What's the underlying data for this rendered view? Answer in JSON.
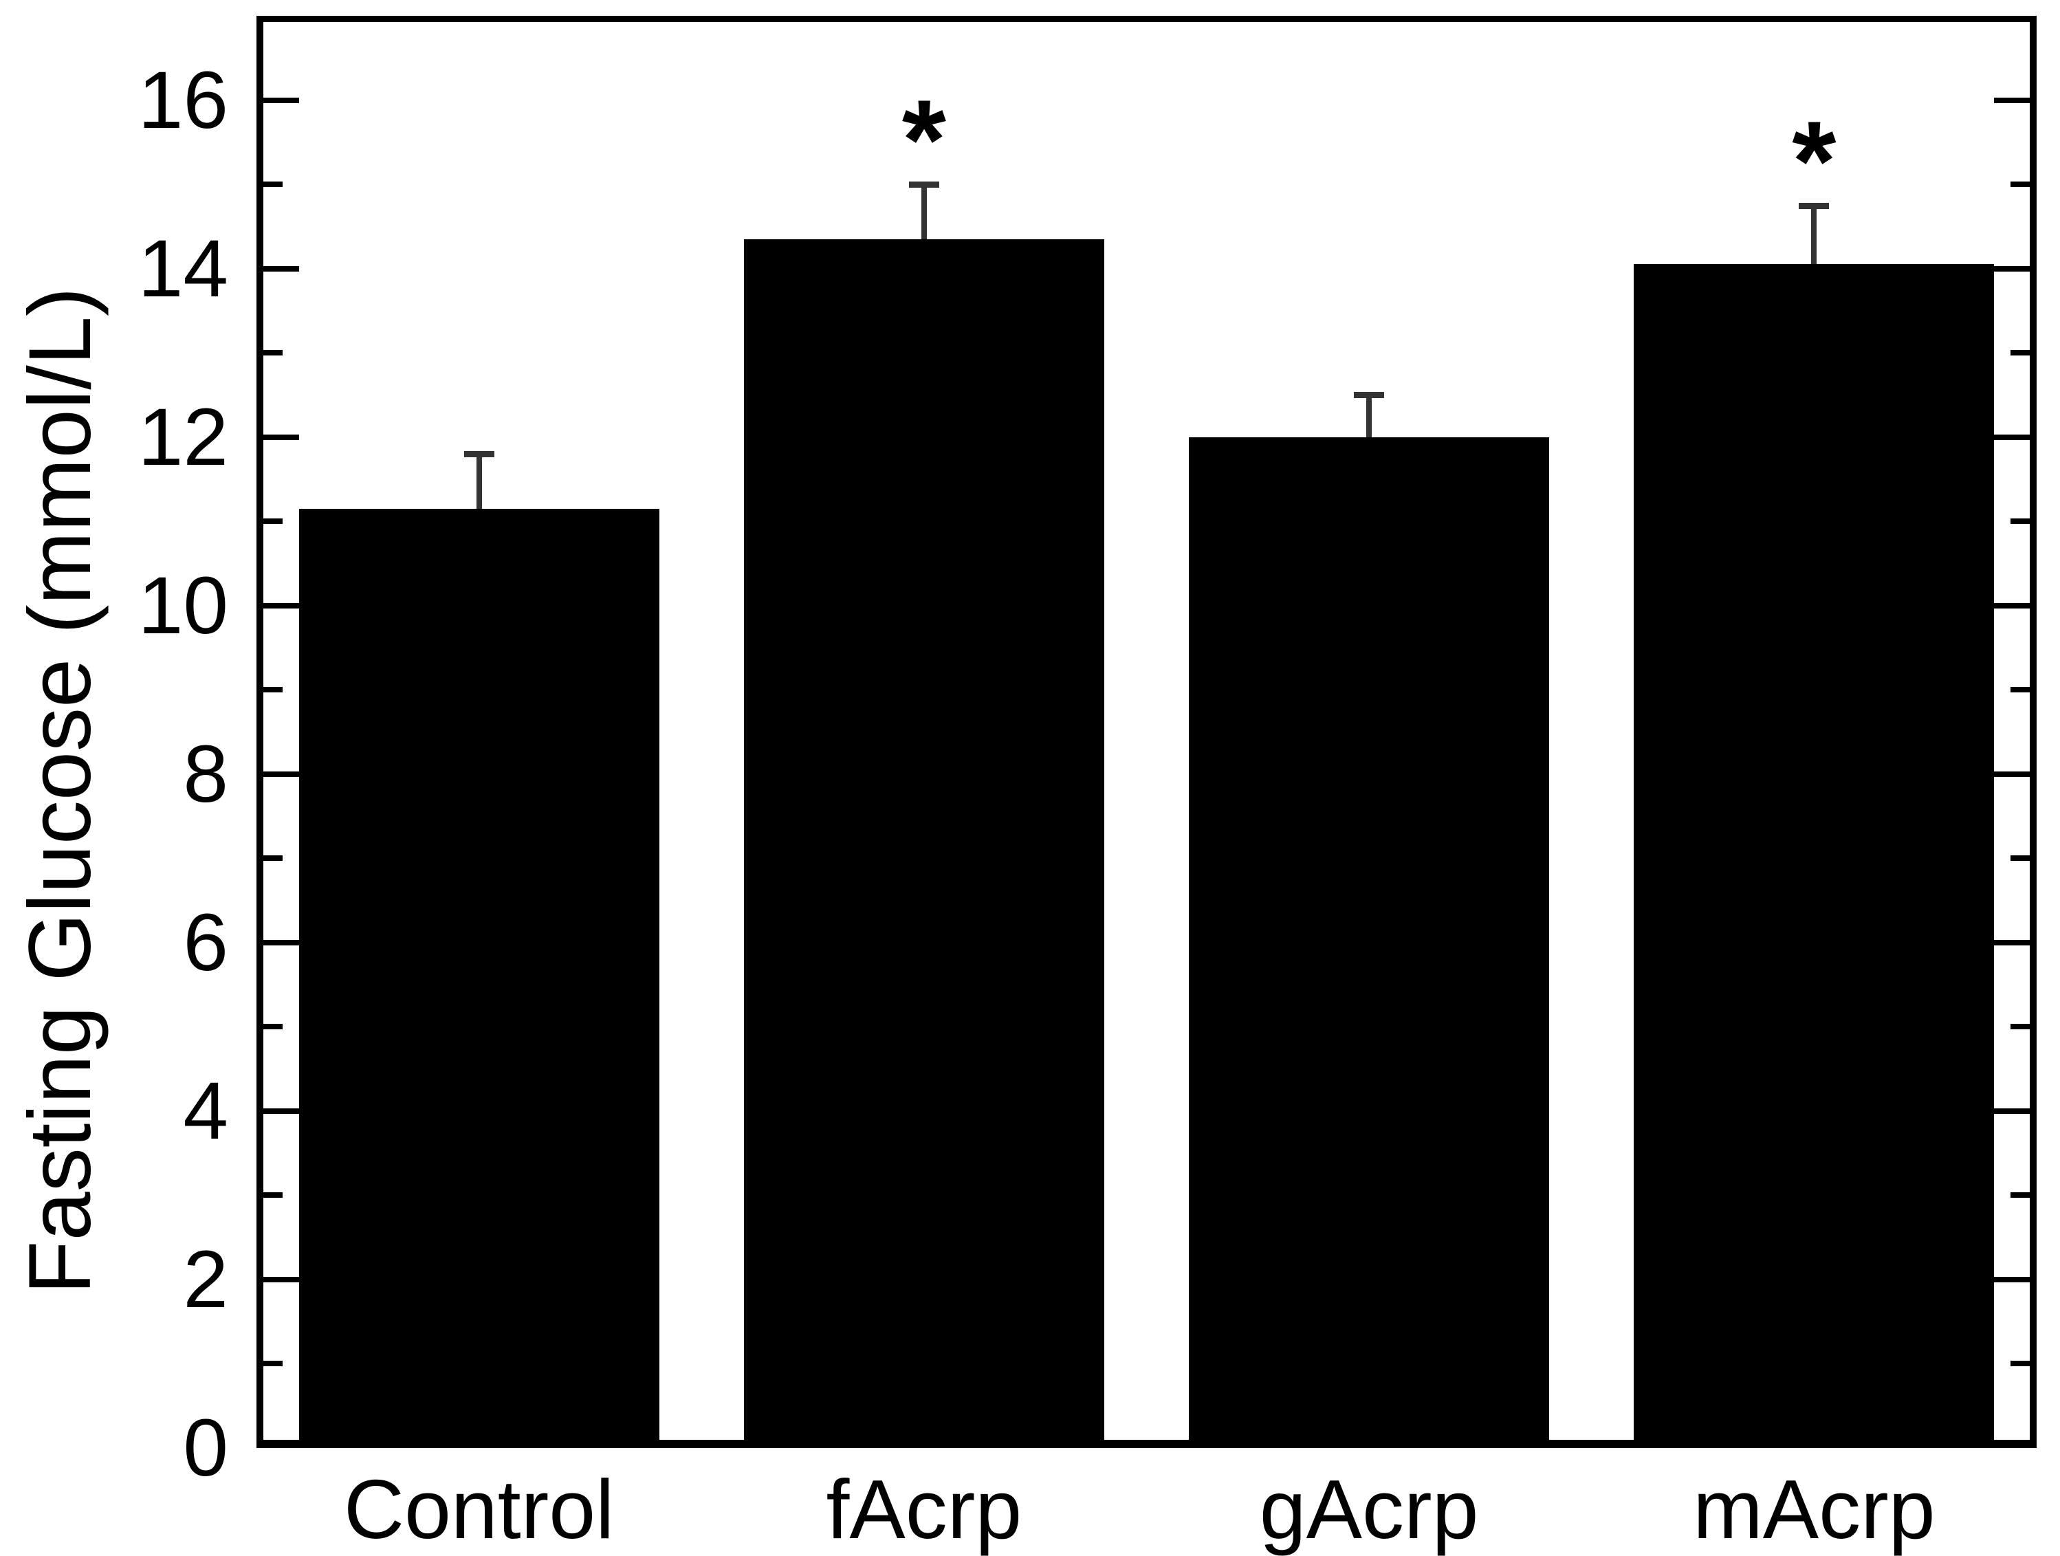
{
  "chart_data": {
    "type": "bar",
    "title": "",
    "xlabel": "",
    "ylabel": "Fasting Glucose (mmol/L)",
    "categories": [
      "Control",
      "fAcrp",
      "gAcrp",
      "mAcrp"
    ],
    "values": [
      11.15,
      14.35,
      12.0,
      14.05
    ],
    "errors_plus": [
      0.65,
      0.65,
      0.5,
      0.7
    ],
    "significance": [
      "",
      "*",
      "",
      "*"
    ],
    "ylim": [
      0,
      17
    ],
    "ytick_labels": [
      0,
      2,
      4,
      6,
      8,
      10,
      12,
      14,
      16
    ],
    "yticks_major": [
      2,
      4,
      6,
      8,
      10,
      12,
      14,
      16
    ],
    "yticks_minor": [
      1,
      3,
      5,
      7,
      9,
      11,
      13,
      15
    ],
    "bar_color": "#000000",
    "error_bar_color": "#333333",
    "axis_color": "#000000",
    "grid": false,
    "legend": null
  }
}
